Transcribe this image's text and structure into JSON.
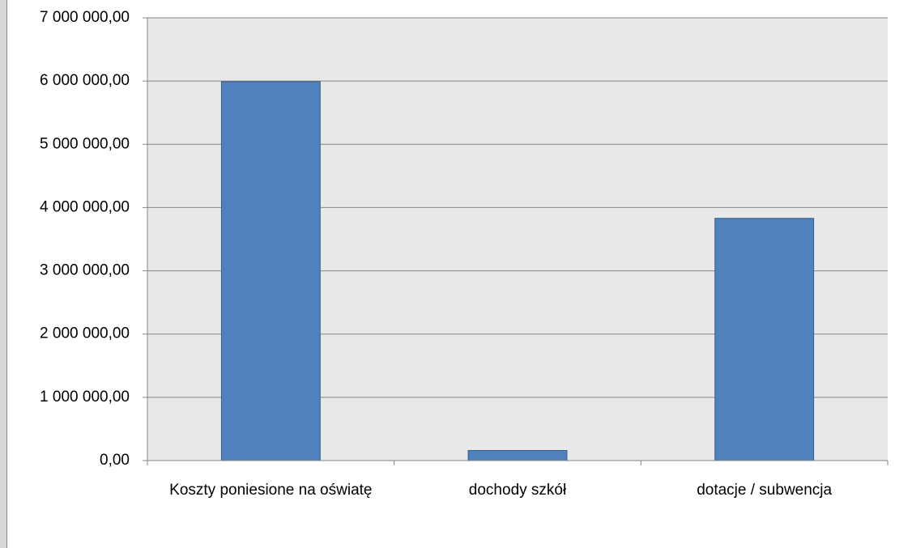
{
  "chart_data": {
    "type": "bar",
    "categories": [
      "Koszty poniesione na oświatę",
      "dochody szkół",
      "dotacje / subwencja"
    ],
    "values": [
      5990000,
      160000,
      3830000
    ],
    "color": "#4f81bd",
    "ylim": [
      0,
      7000000
    ],
    "yticks": [
      {
        "value": 0,
        "label": "0,00"
      },
      {
        "value": 1000000,
        "label": "1 000 000,00"
      },
      {
        "value": 2000000,
        "label": "2 000 000,00"
      },
      {
        "value": 3000000,
        "label": "3 000 000,00"
      },
      {
        "value": 4000000,
        "label": "4 000 000,00"
      },
      {
        "value": 5000000,
        "label": "5 000 000,00"
      },
      {
        "value": 6000000,
        "label": "6 000 000,00"
      },
      {
        "value": 7000000,
        "label": "7 000 000,00"
      }
    ],
    "grid": true
  }
}
